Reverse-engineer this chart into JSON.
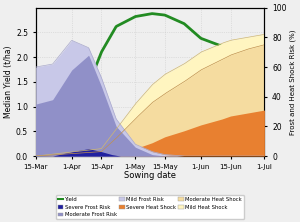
{
  "xlabel": "Sowing date",
  "ylabel_left": "Median Yield (t/ha)",
  "ylabel_right": "Frost and Heat Shock Risk (%)",
  "x_labels": [
    "15-Mar",
    "1-Apr",
    "15-Apr",
    "1-May",
    "15-May",
    "1-Jun",
    "15-Jun",
    "1-Jul"
  ],
  "x_ticks": [
    0,
    17,
    31,
    47,
    61,
    78,
    92,
    108
  ],
  "xmax": 108,
  "yield_pts_x": [
    0,
    8,
    17,
    25,
    31,
    38,
    47,
    55,
    61,
    70,
    78,
    88,
    100,
    108
  ],
  "yield_pts_y": [
    0.05,
    0.22,
    0.65,
    1.45,
    2.1,
    2.62,
    2.82,
    2.88,
    2.85,
    2.68,
    2.38,
    2.22,
    2.18,
    2.2
  ],
  "mild_frost_pts_x": [
    0,
    8,
    17,
    25,
    31,
    38,
    47,
    55,
    61,
    70,
    78,
    92,
    108
  ],
  "mild_frost_pts_y": [
    60,
    62,
    78,
    73,
    53,
    25,
    8,
    3,
    1,
    0,
    0,
    0,
    0
  ],
  "mod_frost_pts_x": [
    0,
    8,
    17,
    25,
    31,
    38,
    47,
    55,
    61,
    70,
    78,
    92,
    108
  ],
  "mod_frost_pts_y": [
    35,
    38,
    58,
    68,
    47,
    20,
    6,
    1,
    0,
    0,
    0,
    0,
    0
  ],
  "sev_frost_pts_x": [
    0,
    8,
    17,
    25,
    31,
    36,
    40,
    47,
    55,
    108
  ],
  "sev_frost_pts_y": [
    0,
    0,
    3,
    5,
    3,
    1,
    0,
    0,
    0,
    0
  ],
  "mild_heat_pts_x": [
    0,
    31,
    38,
    47,
    55,
    61,
    70,
    78,
    88,
    92,
    100,
    108
  ],
  "mild_heat_pts_y": [
    0,
    5,
    18,
    35,
    48,
    55,
    62,
    70,
    76,
    78,
    80,
    82
  ],
  "mod_heat_pts_x": [
    0,
    31,
    38,
    47,
    55,
    61,
    70,
    78,
    88,
    92,
    100,
    108
  ],
  "mod_heat_pts_y": [
    0,
    3,
    12,
    25,
    36,
    42,
    50,
    58,
    65,
    68,
    72,
    75
  ],
  "sev_heat_pts_x": [
    0,
    38,
    47,
    55,
    61,
    70,
    78,
    88,
    92,
    100,
    108
  ],
  "sev_heat_pts_y": [
    0,
    2,
    5,
    9,
    13,
    17,
    21,
    25,
    27,
    29,
    31
  ],
  "color_mild_frost": "#C8C8E8",
  "color_mod_frost": "#9090C8",
  "color_sev_frost": "#2020A0",
  "color_mild_heat": "#FFF5C0",
  "color_mod_heat": "#F5DCA0",
  "color_sev_heat": "#E88030",
  "color_yield": "#228B22",
  "ylim_left": [
    0,
    3.0
  ],
  "ylim_right": [
    0,
    100
  ],
  "yticks_left": [
    0,
    0.5,
    1.0,
    1.5,
    2.0,
    2.5
  ],
  "yticks_right": [
    0,
    20,
    40,
    60,
    80,
    100
  ],
  "bg_color": "#EFEFEF",
  "grid_color": "#CCCCCC",
  "legend_items": [
    {
      "label": "Yield",
      "type": "line",
      "color": "#228B22"
    },
    {
      "label": "Severe Frost Risk",
      "type": "patch",
      "color": "#2020A0"
    },
    {
      "label": "Moderate Frost Risk",
      "type": "patch",
      "color": "#9090C8"
    },
    {
      "label": "Mild Frost Risk",
      "type": "patch",
      "color": "#C8C8E8"
    },
    {
      "label": "Severe Heat Shock",
      "type": "patch",
      "color": "#E88030"
    },
    {
      "label": "Moderate Heat Shock",
      "type": "patch",
      "color": "#F5DCA0"
    },
    {
      "label": "Mild Heat Shock",
      "type": "patch",
      "color": "#FFF5C0"
    }
  ]
}
